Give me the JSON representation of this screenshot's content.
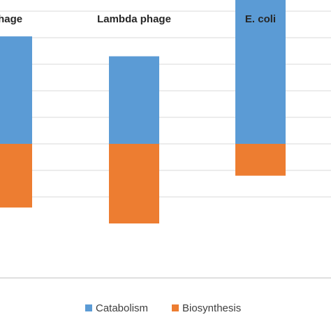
{
  "chart_data": {
    "type": "bar",
    "stacked": true,
    "categories": [
      "phage",
      "Lambda phage",
      "E. coli"
    ],
    "series": [
      {
        "name": "Biosynthesis",
        "values": [
          -0.48,
          -0.6,
          -0.24
        ]
      },
      {
        "name": "Catabolism",
        "values": [
          0.81,
          0.66,
          1.4
        ]
      }
    ],
    "ylim": [
      -0.5,
      1.6
    ],
    "gridlines": [
      -0.4,
      -0.2,
      0,
      0.2,
      0.4,
      0.6,
      0.8,
      1.0,
      1.2,
      1.4,
      1.6
    ],
    "grid": true,
    "legend_position": "bottom",
    "colors": {
      "Catabolism": "#5b9bd5",
      "Biosynthesis": "#ed7d31",
      "grid": "#d9d9d9",
      "axis": "#bfbfbf"
    }
  },
  "legend": {
    "items": [
      {
        "label": "Catabolism",
        "color": "#5b9bd5"
      },
      {
        "label": "Biosynthesis",
        "color": "#ed7d31"
      }
    ]
  }
}
